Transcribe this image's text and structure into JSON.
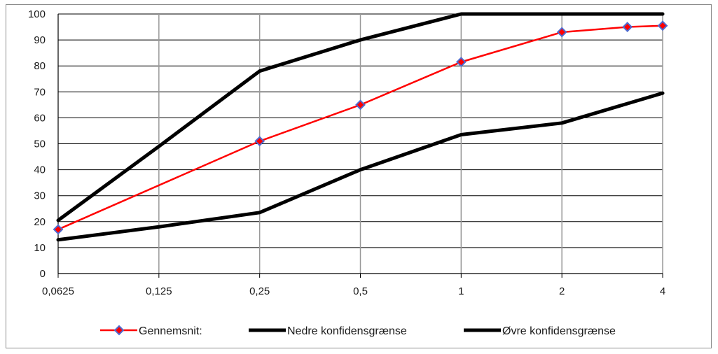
{
  "chart_data": {
    "type": "line",
    "title": "",
    "xlabel": "",
    "ylabel": "",
    "categories": [
      "0,0625",
      "0,125",
      "0,25",
      "0,5",
      "1",
      "2",
      "4"
    ],
    "ylim": [
      0,
      100
    ],
    "ytick_step": 10,
    "grid": true,
    "legend_position": "bottom",
    "series": [
      {
        "name": "Gennemsnit:",
        "color": "#ff0000",
        "marker": "diamond",
        "marker_color": "#4f6bd0",
        "points": [
          {
            "x": 0,
            "y": 17
          },
          {
            "x": 2,
            "y": 51
          },
          {
            "x": 3,
            "y": 65
          },
          {
            "x": 4,
            "y": 81.5
          },
          {
            "x": 5,
            "y": 93
          },
          {
            "x": 5.65,
            "y": 95
          },
          {
            "x": 6,
            "y": 95.5
          }
        ]
      },
      {
        "name": "Nedre konfidensgrænse",
        "color": "#000000",
        "marker": "none",
        "points": [
          {
            "x": 0,
            "y": 13
          },
          {
            "x": 1,
            "y": 18
          },
          {
            "x": 2,
            "y": 23.5
          },
          {
            "x": 3,
            "y": 40
          },
          {
            "x": 4,
            "y": 53.5
          },
          {
            "x": 5,
            "y": 58
          },
          {
            "x": 6,
            "y": 69.5
          }
        ]
      },
      {
        "name": "Øvre konfidensgrænse",
        "color": "#000000",
        "marker": "none",
        "points": [
          {
            "x": 0,
            "y": 20.5
          },
          {
            "x": 1,
            "y": 49
          },
          {
            "x": 2,
            "y": 78
          },
          {
            "x": 3,
            "y": 90
          },
          {
            "x": 4,
            "y": 100
          },
          {
            "x": 5,
            "y": 100
          },
          {
            "x": 6,
            "y": 100
          }
        ]
      }
    ]
  }
}
